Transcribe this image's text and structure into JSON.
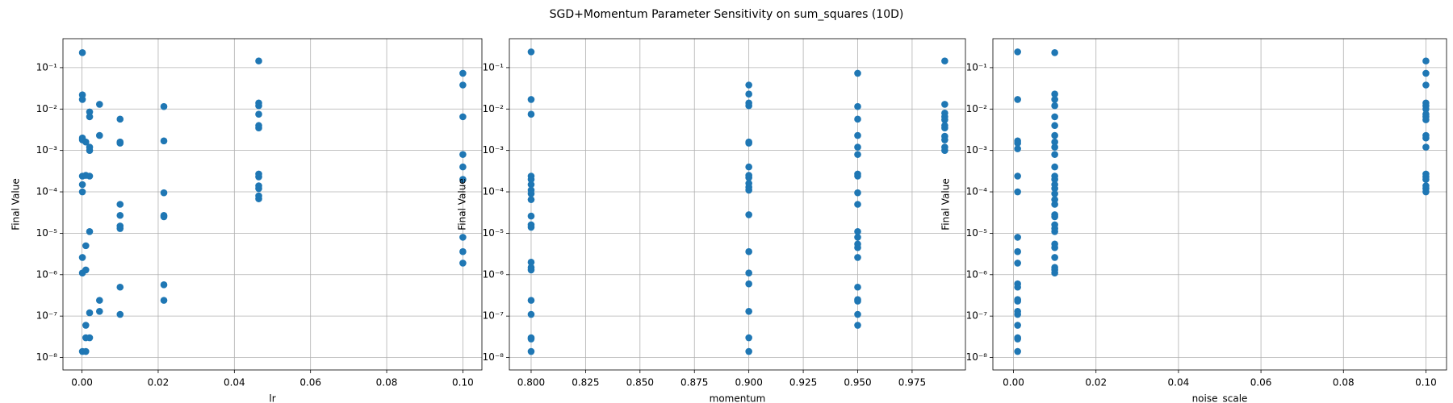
{
  "title": "SGD+Momentum Parameter Sensitivity on sum_squares (10D)",
  "chart_data": [
    {
      "type": "scatter",
      "xlabel": "lr",
      "ylabel": "Final Value",
      "color": "#1f77b4",
      "log_y": true,
      "grid": true,
      "xlim": [
        -0.005,
        0.105
      ],
      "ylim": [
        5e-09,
        0.5
      ],
      "xticks": [
        {
          "value": 0,
          "label": "0.00"
        },
        {
          "value": 0.02,
          "label": "0.02"
        },
        {
          "value": 0.04,
          "label": "0.04"
        },
        {
          "value": 0.06,
          "label": "0.06"
        },
        {
          "value": 0.08,
          "label": "0.08"
        },
        {
          "value": 0.1,
          "label": "0.10"
        }
      ],
      "yticks": [
        {
          "value": 1e-08,
          "label": "10⁻⁸"
        },
        {
          "value": 1e-07,
          "label": "10⁻⁷"
        },
        {
          "value": 1e-06,
          "label": "10⁻⁶"
        },
        {
          "value": 1e-05,
          "label": "10⁻⁵"
        },
        {
          "value": 0.0001,
          "label": "10⁻⁴"
        },
        {
          "value": 0.001,
          "label": "10⁻³"
        },
        {
          "value": 0.01,
          "label": "10⁻²"
        },
        {
          "value": 0.1,
          "label": "10⁻¹"
        }
      ],
      "x": [
        0.0001,
        0.0001,
        0.0001,
        0.0001,
        0.0001,
        0.0001,
        0.0001,
        0.0001,
        0.0001,
        0.0001,
        0.0001,
        0.001,
        0.001,
        0.001,
        0.001,
        0.001,
        0.001,
        0.001,
        0.002,
        0.002,
        0.002,
        0.002,
        0.002,
        0.002,
        0.002,
        0.002,
        0.0046,
        0.0046,
        0.0046,
        0.0046,
        0.01,
        0.01,
        0.01,
        0.01,
        0.01,
        0.01,
        0.01,
        0.01,
        0.01,
        0.0215,
        0.0215,
        0.0215,
        0.0215,
        0.0215,
        0.0215,
        0.0215,
        0.0464,
        0.0464,
        0.0464,
        0.0464,
        0.0464,
        0.0464,
        0.0464,
        0.0464,
        0.0464,
        0.0464,
        0.0464,
        0.0464,
        0.1,
        0.1,
        0.1,
        0.1,
        0.1,
        0.1,
        0.1,
        0.1,
        0.1
      ],
      "values": [
        0.23,
        0.022,
        0.017,
        0.002,
        0.0018,
        0.00024,
        0.00015,
        0.0001,
        2.6e-06,
        1.1e-06,
        1.4e-08,
        0.0016,
        0.00025,
        5e-06,
        1.3e-06,
        6e-08,
        3e-08,
        1.4e-08,
        0.0085,
        0.0065,
        0.0012,
        0.001,
        0.00024,
        1.1e-05,
        1.2e-07,
        3e-08,
        0.013,
        0.0023,
        2.4e-07,
        1.3e-07,
        0.0057,
        0.0016,
        0.0015,
        5e-05,
        2.7e-05,
        1.5e-05,
        1.3e-05,
        5e-07,
        1.1e-07,
        0.0115,
        0.0017,
        9.5e-05,
        2.7e-05,
        2.5e-05,
        5.7e-07,
        2.4e-07,
        0.145,
        0.014,
        0.012,
        0.0075,
        0.004,
        0.0035,
        0.00027,
        0.00023,
        0.00014,
        0.00012,
        8e-05,
        6.8e-05,
        0.073,
        0.038,
        0.0065,
        0.0008,
        0.0004,
        0.0002,
        8e-06,
        3.6e-06,
        1.9e-06
      ]
    },
    {
      "type": "scatter",
      "xlabel": "momentum",
      "ylabel": "Final Value",
      "color": "#1f77b4",
      "log_y": true,
      "grid": true,
      "xlim": [
        0.79,
        0.9995
      ],
      "ylim": [
        5e-09,
        0.5
      ],
      "xticks": [
        {
          "value": 0.8,
          "label": "0.800"
        },
        {
          "value": 0.825,
          "label": "0.825"
        },
        {
          "value": 0.85,
          "label": "0.850"
        },
        {
          "value": 0.875,
          "label": "0.875"
        },
        {
          "value": 0.9,
          "label": "0.900"
        },
        {
          "value": 0.925,
          "label": "0.925"
        },
        {
          "value": 0.95,
          "label": "0.950"
        },
        {
          "value": 0.975,
          "label": "0.975"
        }
      ],
      "yticks": [
        {
          "value": 1e-08,
          "label": "10⁻⁸"
        },
        {
          "value": 1e-07,
          "label": "10⁻⁷"
        },
        {
          "value": 1e-06,
          "label": "10⁻⁶"
        },
        {
          "value": 1e-05,
          "label": "10⁻⁵"
        },
        {
          "value": 0.0001,
          "label": "10⁻⁴"
        },
        {
          "value": 0.001,
          "label": "10⁻³"
        },
        {
          "value": 0.01,
          "label": "10⁻²"
        },
        {
          "value": 0.1,
          "label": "10⁻¹"
        }
      ],
      "x": [
        0.8,
        0.8,
        0.8,
        0.8,
        0.8,
        0.8,
        0.8,
        0.8,
        0.8,
        0.8,
        0.8,
        0.8,
        0.8,
        0.8,
        0.8,
        0.8,
        0.8,
        0.8,
        0.8,
        0.8,
        0.9,
        0.9,
        0.9,
        0.9,
        0.9,
        0.9,
        0.9,
        0.9,
        0.9,
        0.9,
        0.9,
        0.9,
        0.9,
        0.9,
        0.9,
        0.9,
        0.9,
        0.9,
        0.9,
        0.95,
        0.95,
        0.95,
        0.95,
        0.95,
        0.95,
        0.95,
        0.95,
        0.95,
        0.95,
        0.95,
        0.95,
        0.95,
        0.95,
        0.95,
        0.95,
        0.95,
        0.95,
        0.95,
        0.95,
        0.99,
        0.99,
        0.99,
        0.99,
        0.99,
        0.99,
        0.99,
        0.99,
        0.99,
        0.99,
        0.99
      ],
      "values": [
        0.24,
        0.017,
        0.0075,
        0.00024,
        0.0002,
        0.00015,
        0.00011,
        9e-05,
        6.5e-05,
        2.6e-05,
        1.6e-05,
        1.4e-05,
        2e-06,
        1.5e-06,
        1.3e-06,
        2.4e-07,
        1.1e-07,
        3e-08,
        2.8e-08,
        1.4e-08,
        0.038,
        0.023,
        0.014,
        0.012,
        0.0016,
        0.0015,
        0.0004,
        0.00025,
        0.00022,
        0.00016,
        0.00013,
        0.00011,
        2.8e-05,
        3.6e-06,
        1.1e-06,
        6e-07,
        1.3e-07,
        3e-08,
        1.4e-08,
        0.073,
        0.0115,
        0.0057,
        0.0023,
        0.0012,
        0.0008,
        0.00027,
        0.00024,
        9.5e-05,
        5e-05,
        1.1e-05,
        8e-06,
        5.5e-06,
        4.5e-06,
        2.6e-06,
        5e-07,
        2.5e-07,
        2.3e-07,
        1.1e-07,
        6e-08,
        0.145,
        0.013,
        0.008,
        0.0065,
        0.0055,
        0.004,
        0.0035,
        0.0022,
        0.0018,
        0.0012,
        0.001
      ]
    },
    {
      "type": "scatter",
      "xlabel": "noise_scale",
      "ylabel": "Final Value",
      "color": "#1f77b4",
      "log_y": true,
      "grid": true,
      "xlim": [
        -0.005,
        0.105
      ],
      "ylim": [
        5e-09,
        0.5
      ],
      "xticks": [
        {
          "value": 0,
          "label": "0.00"
        },
        {
          "value": 0.02,
          "label": "0.02"
        },
        {
          "value": 0.04,
          "label": "0.04"
        },
        {
          "value": 0.06,
          "label": "0.06"
        },
        {
          "value": 0.08,
          "label": "0.08"
        },
        {
          "value": 0.1,
          "label": "0.10"
        }
      ],
      "yticks": [
        {
          "value": 1e-08,
          "label": "10⁻⁸"
        },
        {
          "value": 1e-07,
          "label": "10⁻⁷"
        },
        {
          "value": 1e-06,
          "label": "10⁻⁶"
        },
        {
          "value": 1e-05,
          "label": "10⁻⁵"
        },
        {
          "value": 0.0001,
          "label": "10⁻⁴"
        },
        {
          "value": 0.001,
          "label": "10⁻³"
        },
        {
          "value": 0.01,
          "label": "10⁻²"
        },
        {
          "value": 0.1,
          "label": "10⁻¹"
        }
      ],
      "x": [
        0.001,
        0.001,
        0.001,
        0.001,
        0.001,
        0.001,
        0.001,
        0.001,
        0.001,
        0.001,
        0.001,
        0.001,
        0.001,
        0.001,
        0.001,
        0.001,
        0.001,
        0.001,
        0.001,
        0.001,
        0.01,
        0.01,
        0.01,
        0.01,
        0.01,
        0.01,
        0.01,
        0.01,
        0.01,
        0.01,
        0.01,
        0.01,
        0.01,
        0.01,
        0.01,
        0.01,
        0.01,
        0.01,
        0.01,
        0.01,
        0.01,
        0.01,
        0.01,
        0.01,
        0.01,
        0.01,
        0.01,
        0.01,
        0.01,
        0.1,
        0.1,
        0.1,
        0.1,
        0.1,
        0.1,
        0.1,
        0.1,
        0.1,
        0.1,
        0.1,
        0.1,
        0.1,
        0.1,
        0.1,
        0.1,
        0.1,
        0.1
      ],
      "values": [
        0.24,
        0.017,
        0.0017,
        0.0015,
        0.0011,
        0.00024,
        0.0001,
        8e-06,
        3.6e-06,
        1.9e-06,
        6e-07,
        5e-07,
        2.5e-07,
        2.3e-07,
        1.3e-07,
        1.1e-07,
        6e-08,
        3e-08,
        2.8e-08,
        1.4e-08,
        0.23,
        0.023,
        0.017,
        0.012,
        0.0065,
        0.004,
        0.0023,
        0.0016,
        0.0012,
        0.0008,
        0.0004,
        0.00024,
        0.0002,
        0.00015,
        0.00012,
        9e-05,
        6.5e-05,
        5e-05,
        2.8e-05,
        2.5e-05,
        1.6e-05,
        1.3e-05,
        1.1e-05,
        5.5e-06,
        4.5e-06,
        2.6e-06,
        1.5e-06,
        1.3e-06,
        1.1e-06,
        0.145,
        0.073,
        0.038,
        0.014,
        0.012,
        0.01,
        0.0075,
        0.0065,
        0.0055,
        0.0023,
        0.002,
        0.0012,
        0.00027,
        0.00023,
        0.0002,
        0.00014,
        0.00012,
        0.0001
      ]
    }
  ]
}
